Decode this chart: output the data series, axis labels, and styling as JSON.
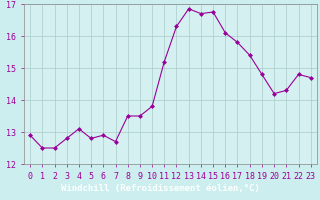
{
  "x": [
    0,
    1,
    2,
    3,
    4,
    5,
    6,
    7,
    8,
    9,
    10,
    11,
    12,
    13,
    14,
    15,
    16,
    17,
    18,
    19,
    20,
    21,
    22,
    23
  ],
  "y": [
    12.9,
    12.5,
    12.5,
    12.8,
    13.1,
    12.8,
    12.9,
    12.7,
    13.5,
    13.5,
    13.8,
    15.2,
    16.3,
    16.85,
    16.7,
    16.75,
    16.1,
    15.8,
    15.4,
    14.8,
    14.2,
    14.3,
    14.8,
    14.7
  ],
  "line_color": "#990099",
  "marker": "D",
  "markersize": 2.0,
  "linewidth": 0.8,
  "bg_color": "#cceeee",
  "plot_bg_color": "#d4f0f0",
  "grid_color": "#aacccc",
  "xlabel": "Windchill (Refroidissement éolien,°C)",
  "xlabel_fontsize": 6.5,
  "tick_fontsize": 6.0,
  "ylim": [
    12,
    17
  ],
  "yticks": [
    12,
    13,
    14,
    15,
    16,
    17
  ],
  "xticks": [
    0,
    1,
    2,
    3,
    4,
    5,
    6,
    7,
    8,
    9,
    10,
    11,
    12,
    13,
    14,
    15,
    16,
    17,
    18,
    19,
    20,
    21,
    22,
    23
  ],
  "xtick_labels": [
    "0",
    "1",
    "2",
    "3",
    "4",
    "5",
    "6",
    "7",
    "8",
    "9",
    "10",
    "11",
    "12",
    "13",
    "14",
    "15",
    "16",
    "17",
    "18",
    "19",
    "20",
    "21",
    "22",
    "23"
  ],
  "bottom_bar_color": "#550055",
  "bottom_bar_height": 0.12
}
